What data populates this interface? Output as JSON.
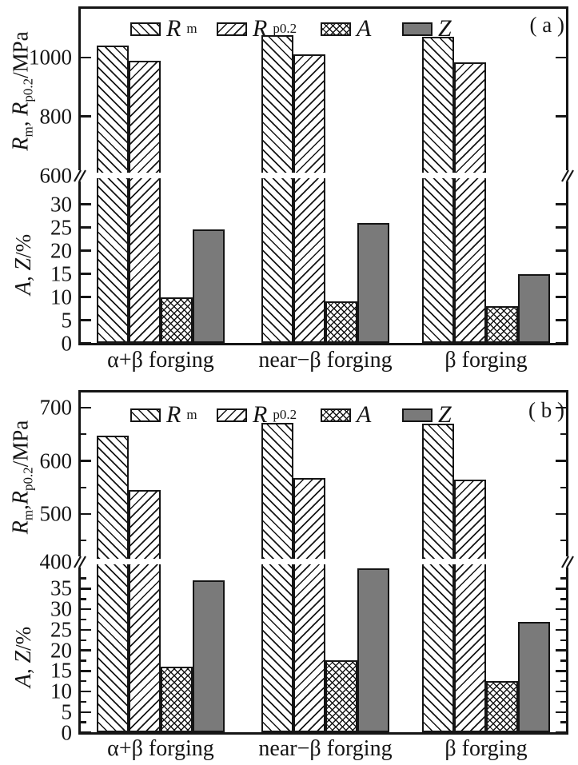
{
  "figure": {
    "colors": {
      "ink": "#151515",
      "z_fill": "#7a7a7a",
      "background": "#ffffff"
    },
    "panels": [
      {
        "tag": "( a )",
        "legend": [
          {
            "main": "R",
            "sub": "m",
            "swatch": "backslash"
          },
          {
            "main": "R",
            "sub": "p0.2",
            "swatch": "slash"
          },
          {
            "main": "A",
            "sub": "",
            "swatch": "cross"
          },
          {
            "main": "Z",
            "sub": "",
            "swatch": "solid"
          }
        ],
        "upper_ylabel": {
          "r1": "R",
          "r1sub": "m",
          "comma": ", ",
          "r2": "R",
          "r2sub": "p0.2",
          "unit": "/MPa"
        },
        "lower_ylabel": {
          "a": "A",
          "comma": ", ",
          "z": "Z",
          "unit": "/%"
        }
      },
      {
        "tag": "( b )",
        "legend": [
          {
            "main": "R",
            "sub": "m",
            "swatch": "backslash"
          },
          {
            "main": "R",
            "sub": "p0.2",
            "swatch": "slash"
          },
          {
            "main": "A",
            "sub": "",
            "swatch": "cross"
          },
          {
            "main": "Z",
            "sub": "",
            "swatch": "solid"
          }
        ],
        "upper_ylabel": {
          "r1": "R",
          "r1sub": "m",
          "comma": ",",
          "r2": "R",
          "r2sub": "p0.2",
          "unit": "/MPa"
        },
        "lower_ylabel": {
          "a": "A",
          "comma": ", ",
          "z": "Z",
          "unit": "/%"
        }
      }
    ]
  },
  "chart_data": [
    {
      "type": "bar",
      "panel": "(a)",
      "broken_axis": true,
      "legend_position": "top",
      "categories": [
        "α+β forging",
        "near−β forging",
        "β forging"
      ],
      "series": [
        {
          "name": "Rm",
          "unit": "MPa",
          "axis": "upper",
          "values": [
            1040,
            1075,
            1070
          ]
        },
        {
          "name": "Rp0.2",
          "unit": "MPa",
          "axis": "upper",
          "values": [
            990,
            1010,
            985
          ]
        },
        {
          "name": "A",
          "unit": "%",
          "axis": "lower",
          "values": [
            10,
            9,
            8
          ]
        },
        {
          "name": "Z",
          "unit": "%",
          "axis": "lower",
          "values": [
            24.5,
            26,
            15
          ]
        }
      ],
      "upper_axis": {
        "label": "Rm, Rp0.2/MPa",
        "ticks": [
          1000,
          800
        ],
        "minor_ticks": [],
        "break_tick": 600,
        "range": [
          600,
          1160
        ]
      },
      "lower_axis": {
        "label": "A, Z/%",
        "ticks": [
          30,
          25,
          20,
          15,
          10,
          5,
          0
        ],
        "minor_step": null,
        "range": [
          0,
          35.5
        ]
      }
    },
    {
      "type": "bar",
      "panel": "(b)",
      "broken_axis": true,
      "legend_position": "top",
      "categories": [
        "α+β forging",
        "near−β forging",
        "β forging"
      ],
      "series": [
        {
          "name": "Rm",
          "unit": "MPa",
          "axis": "upper",
          "values": [
            648,
            671,
            670
          ]
        },
        {
          "name": "Rp0.2",
          "unit": "MPa",
          "axis": "upper",
          "values": [
            545,
            567,
            565
          ]
        },
        {
          "name": "A",
          "unit": "%",
          "axis": "lower",
          "values": [
            16,
            17.5,
            12.5
          ]
        },
        {
          "name": "Z",
          "unit": "%",
          "axis": "lower",
          "values": [
            37,
            40,
            27
          ]
        }
      ],
      "upper_axis": {
        "label": "Rm,Rp0.2/MPa",
        "ticks": [
          700,
          600,
          500
        ],
        "minor_ticks": [
          650,
          550,
          450
        ],
        "break_tick": 400,
        "range": [
          400,
          715
        ]
      },
      "lower_axis": {
        "label": "A, Z/%",
        "ticks": [
          35,
          30,
          25,
          20,
          15,
          10,
          5,
          0
        ],
        "minor_step": 2.5,
        "range": [
          0,
          42
        ]
      }
    }
  ]
}
